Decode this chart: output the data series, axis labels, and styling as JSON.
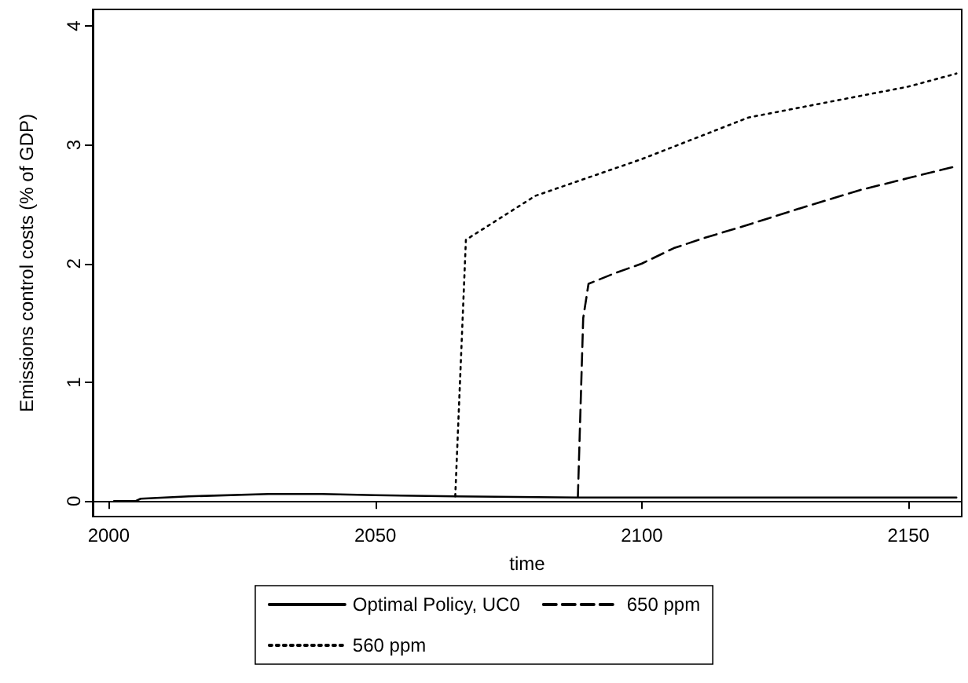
{
  "chart_data": {
    "type": "line",
    "xlabel": "time",
    "ylabel": "Emissions control costs (% of GDP)",
    "xlim": [
      1997,
      2160
    ],
    "xticks": [
      2000,
      2050,
      2100,
      2150
    ],
    "ylim": [
      -0.13,
      4.14
    ],
    "yticks": [
      0,
      1,
      2,
      3,
      4
    ],
    "legend": "bottom",
    "marker": "none",
    "series": [
      {
        "name": "Optimal Policy, UC0",
        "color": "#000000",
        "line_style": "solid",
        "x": [
          2001,
          2005,
          2006,
          2015,
          2030,
          2040,
          2050,
          2065,
          2088,
          2159
        ],
        "values": [
          0,
          0,
          0.02,
          0.04,
          0.06,
          0.06,
          0.05,
          0.04,
          0.03,
          0.03
        ]
      },
      {
        "name": "650 ppm",
        "color": "#000000",
        "line_style": "dashed",
        "x": [
          2088,
          2089,
          2090,
          2095,
          2100,
          2106,
          2112,
          2118,
          2130,
          2141,
          2150,
          2159
        ],
        "values": [
          0.03,
          1.54,
          1.83,
          1.92,
          2.0,
          2.13,
          2.22,
          2.3,
          2.47,
          2.62,
          2.72,
          2.82
        ]
      },
      {
        "name": "560 ppm",
        "color": "#000000",
        "line_style": "dotted",
        "x": [
          2065,
          2067,
          2080,
          2100,
          2120,
          2150,
          2159
        ],
        "values": [
          0.04,
          2.2,
          2.57,
          2.88,
          3.23,
          3.49,
          3.6
        ]
      }
    ]
  }
}
